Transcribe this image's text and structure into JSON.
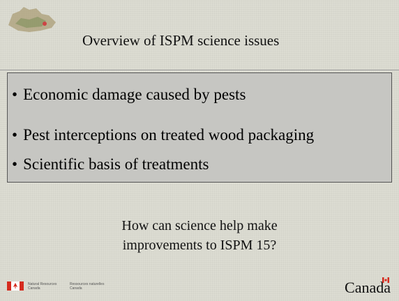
{
  "header": {
    "title": "Overview of ISPM science issues"
  },
  "bullets": [
    "Economic damage caused by pests",
    "Pest interceptions on treated wood packaging",
    "Scientific basis of treatments"
  ],
  "question": [
    "How can science help make",
    "improvements to ISPM 15?"
  ],
  "footer": {
    "department_en": [
      "Natural Resources",
      "Canada"
    ],
    "department_fr": [
      "Ressources naturelles",
      "Canada"
    ],
    "wordmark": "Canada"
  }
}
